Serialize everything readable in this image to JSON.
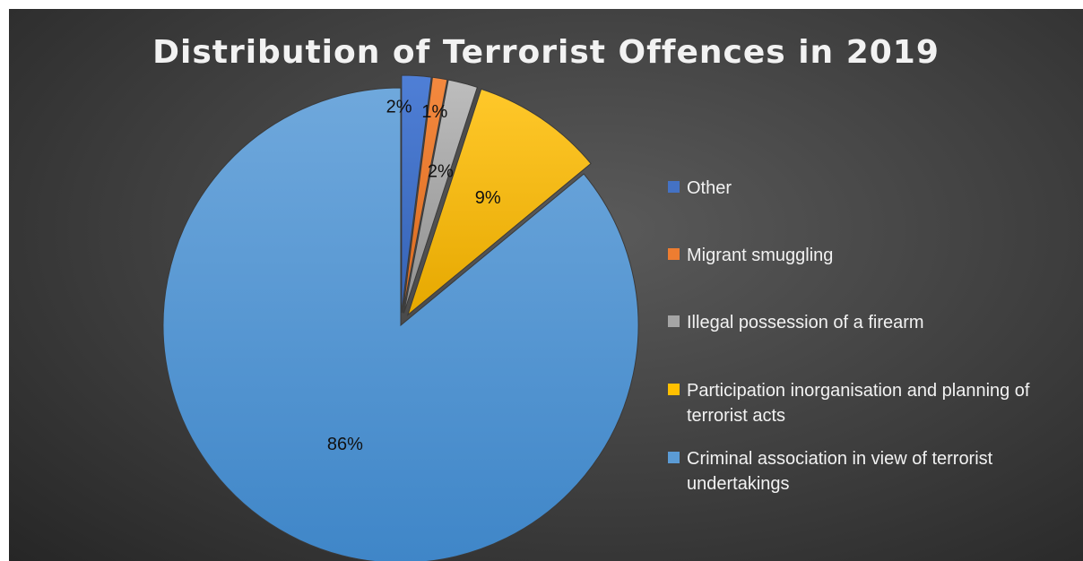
{
  "chart_data": {
    "type": "pie",
    "title": "Distribution of Terrorist Offences in 2019",
    "legend_position": "right",
    "slices": [
      {
        "name": "Other",
        "value": 2,
        "label": "2%",
        "color": "#4472c4",
        "exploded": true
      },
      {
        "name": "Migrant smuggling",
        "value": 1,
        "label": "1%",
        "color": "#ed7d31",
        "exploded": true
      },
      {
        "name": "Illegal possession of a firearm",
        "value": 2,
        "label": "2%",
        "color": "#a5a5a5",
        "exploded": true
      },
      {
        "name": "Participation inorganisation and planning of terrorist acts",
        "value": 9,
        "label": "9%",
        "color": "#ffc000",
        "exploded": true
      },
      {
        "name": "Criminal association in view of terrorist undertakings",
        "value": 86,
        "label": "86%",
        "color": "#5b9bd5",
        "exploded": false
      }
    ]
  }
}
